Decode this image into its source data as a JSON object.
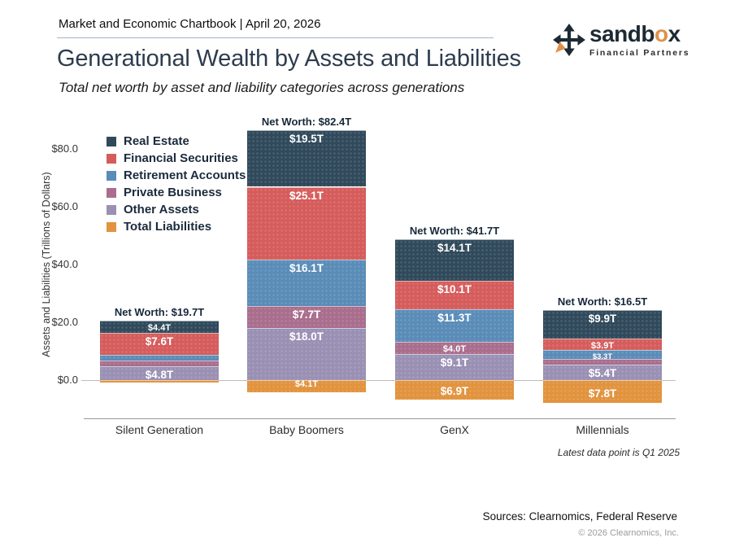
{
  "header": {
    "kicker": "Market and Economic Chartbook | April 20, 2026",
    "title": "Generational Wealth by Assets and Liabilities",
    "subtitle": "Total net worth by asset and liability categories across generations"
  },
  "logo": {
    "word_pre": "sandb",
    "word_accent": "o",
    "word_post": "x",
    "tagline": "Financial Partners",
    "accent_color": "#e0914b",
    "icon": "four-way-move-arrow-icon"
  },
  "chart_data": {
    "type": "bar",
    "stacked": true,
    "title": "Generational Wealth by Assets and Liabilities",
    "ylabel": "Assets and Liabilities (Trillions of Dollars)",
    "units": "trillions of dollars",
    "ylim": [
      -14,
      92
    ],
    "grid": false,
    "legend_position": "upper-left-inside",
    "yticks": [
      {
        "label": "$80.0",
        "value": 80
      },
      {
        "label": "$60.0",
        "value": 60
      },
      {
        "label": "$40.0",
        "value": 40
      },
      {
        "label": "$20.0",
        "value": 20
      },
      {
        "label": "$0.0",
        "value": 0
      }
    ],
    "series": [
      {
        "name": "Real Estate",
        "color": "#304a5c"
      },
      {
        "name": "Financial Securities",
        "color": "#d65c5c"
      },
      {
        "name": "Retirement Accounts",
        "color": "#5a8cb8"
      },
      {
        "name": "Private Business",
        "color": "#a96e8d"
      },
      {
        "name": "Other Assets",
        "color": "#9a90b4"
      },
      {
        "name": "Total Liabilities",
        "color": "#e2933e",
        "direction": "below-zero"
      }
    ],
    "categories": [
      "Silent Generation",
      "Baby Boomers",
      "GenX",
      "Millennials"
    ],
    "bars": [
      {
        "category": "Silent Generation",
        "net_worth": 19.7,
        "net_worth_label": "Net Worth: $19.7T",
        "segments": [
          {
            "series": "Real Estate",
            "value": 4.4,
            "label": "$4.4T"
          },
          {
            "series": "Financial Securities",
            "value": 7.6,
            "label": "$7.6T"
          },
          {
            "series": "Retirement Accounts",
            "value": 1.7,
            "label": ""
          },
          {
            "series": "Private Business",
            "value": 2.1,
            "label": ""
          },
          {
            "series": "Other Assets",
            "value": 4.8,
            "label": "$4.8T"
          },
          {
            "series": "Total Liabilities",
            "value": 0.9,
            "label": ""
          }
        ]
      },
      {
        "category": "Baby Boomers",
        "net_worth": 82.4,
        "net_worth_label": "Net Worth: $82.4T",
        "segments": [
          {
            "series": "Real Estate",
            "value": 19.5,
            "label": "$19.5T"
          },
          {
            "series": "Financial Securities",
            "value": 25.1,
            "label": "$25.1T"
          },
          {
            "series": "Retirement Accounts",
            "value": 16.1,
            "label": "$16.1T"
          },
          {
            "series": "Private Business",
            "value": 7.7,
            "label": "$7.7T"
          },
          {
            "series": "Other Assets",
            "value": 18.0,
            "label": "$18.0T"
          },
          {
            "series": "Total Liabilities",
            "value": 4.1,
            "label": "$4.1T"
          }
        ]
      },
      {
        "category": "GenX",
        "net_worth": 41.7,
        "net_worth_label": "Net Worth: $41.7T",
        "segments": [
          {
            "series": "Real Estate",
            "value": 14.1,
            "label": "$14.1T"
          },
          {
            "series": "Financial Securities",
            "value": 10.1,
            "label": "$10.1T"
          },
          {
            "series": "Retirement Accounts",
            "value": 11.3,
            "label": "$11.3T"
          },
          {
            "series": "Private Business",
            "value": 4.0,
            "label": "$4.0T"
          },
          {
            "series": "Other Assets",
            "value": 9.1,
            "label": "$9.1T"
          },
          {
            "series": "Total Liabilities",
            "value": 6.9,
            "label": "$6.9T"
          }
        ]
      },
      {
        "category": "Millennials",
        "net_worth": 16.5,
        "net_worth_label": "Net Worth: $16.5T",
        "segments": [
          {
            "series": "Real Estate",
            "value": 9.9,
            "label": "$9.9T"
          },
          {
            "series": "Financial Securities",
            "value": 3.9,
            "label": "$3.9T"
          },
          {
            "series": "Retirement Accounts",
            "value": 3.3,
            "label": "$3.3T",
            "small": true
          },
          {
            "series": "Private Business",
            "value": 1.8,
            "label": ""
          },
          {
            "series": "Other Assets",
            "value": 5.4,
            "label": "$5.4T"
          },
          {
            "series": "Total Liabilities",
            "value": 7.8,
            "label": "$7.8T"
          }
        ]
      }
    ]
  },
  "footnotes": {
    "note": "Latest data point is Q1 2025",
    "sources": "Sources: Clearnomics, Federal Reserve",
    "copyright": "© 2026 Clearnomics, Inc."
  }
}
